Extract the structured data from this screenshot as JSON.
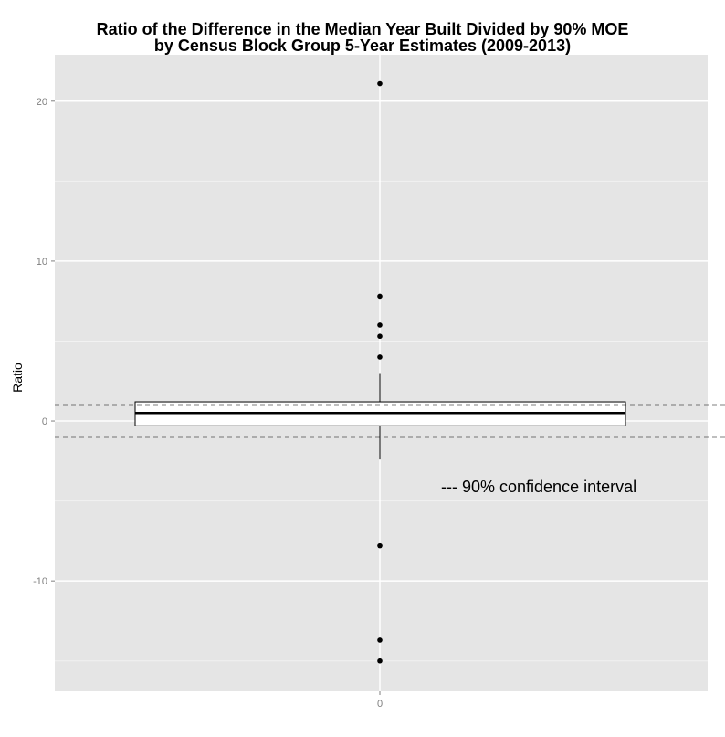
{
  "chart_data": {
    "type": "box",
    "title_line1": "Ratio of the Difference in the Median Year Built Divided by 90% MOE",
    "title_line2": "by Census Block Group 5-Year Estimates (2009-2013)",
    "xlabel": "",
    "ylabel": "Ratio",
    "categories": [
      "0"
    ],
    "ylim": [
      -16.9,
      22.9
    ],
    "yticks": [
      -10,
      0,
      10,
      20
    ],
    "grid": true,
    "box": {
      "q1": -0.3,
      "median": 0.5,
      "q3": 1.2,
      "whisker_low": -2.4,
      "whisker_high": 3.0
    },
    "outliers": [
      21.1,
      7.8,
      6.0,
      5.3,
      4.0,
      -7.8,
      -13.7,
      -15.0
    ],
    "reference_lines": {
      "style": "dashed",
      "values": [
        1.0,
        -1.0
      ]
    },
    "annotation": "--- 90% confidence interval",
    "annotation_position": [
      0.0,
      -4.1
    ],
    "colors": {
      "panel": "#e5e5e5",
      "grid_major": "#ffffff",
      "grid_minor": "#f2f2f2",
      "box_fill": "#ffffff",
      "ink": "#000000",
      "tick_text": "#7f7f7f"
    }
  }
}
